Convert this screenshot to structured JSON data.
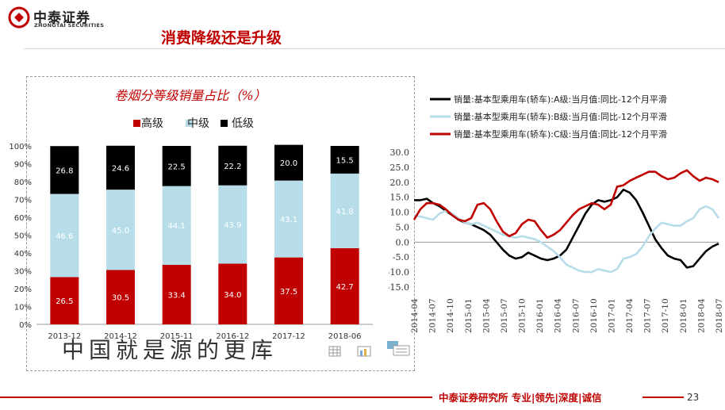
{
  "header": {
    "brand_cn": "中泰证券",
    "brand_en": "ZHONGTAI SECURITIES",
    "page_title": "消费降级还是升级",
    "brand_color": "#c00000"
  },
  "background_text": "中国就是源的更库",
  "footer": {
    "text": "中泰证券研究所 专业|领先|深度|诚信",
    "page_number": "23"
  },
  "chart_data": [
    {
      "type": "bar",
      "stacked": true,
      "title": "卷烟分等级销量占比（%）",
      "categories": [
        "2013-12",
        "2014-12",
        "2015-11",
        "2016-12",
        "2017-12",
        "2018-06"
      ],
      "series": [
        {
          "name": "高级",
          "color": "#c00000",
          "values": [
            26.5,
            30.5,
            33.4,
            34.0,
            37.5,
            42.7
          ]
        },
        {
          "name": "中级",
          "color": "#b7dde8",
          "values": [
            46.6,
            45.0,
            44.1,
            43.9,
            43.1,
            41.8
          ]
        },
        {
          "name": "低级",
          "color": "#000000",
          "values": [
            26.8,
            24.6,
            22.5,
            22.2,
            20.0,
            15.5
          ]
        }
      ],
      "y_ticks": [
        "0%",
        "10%",
        "20%",
        "30%",
        "40%",
        "50%",
        "60%",
        "70%",
        "80%",
        "90%",
        "100%"
      ],
      "ylim": [
        0,
        100
      ],
      "legend": "top"
    },
    {
      "type": "line",
      "title": "",
      "legend": "top",
      "x_ticks": [
        "2014-04",
        "2014-07",
        "2014-10",
        "2015-01",
        "2015-04",
        "2015-07",
        "2015-10",
        "2016-01",
        "2016-04",
        "2016-07",
        "2016-10",
        "2017-01",
        "2017-04",
        "2017-07",
        "2017-10",
        "2018-01",
        "2018-04",
        "2018-07"
      ],
      "ylim": [
        -15,
        30
      ],
      "y_ticks": [
        "30.0",
        "25.0",
        "20.0",
        "15.0",
        "10.0",
        "5.0",
        "0.0",
        "-5.0",
        "-10.0",
        "-15.0"
      ],
      "series": [
        {
          "name": "销量:基本型乘用车(轿车):A级:当月值:同比-12个月平滑",
          "color": "#000000",
          "values": [
            14,
            14,
            14.5,
            13,
            12,
            10.5,
            9,
            7.5,
            6.5,
            6,
            5,
            4,
            2.5,
            0,
            -2.5,
            -4.5,
            -5.5,
            -5,
            -3.5,
            -4.5,
            -5.5,
            -6,
            -5.5,
            -4.5,
            -2.5,
            1.5,
            5.5,
            9.5,
            12.5,
            14,
            13.5,
            14,
            15,
            17.5,
            16.5,
            14,
            10,
            5.5,
            1,
            -2,
            -4.5,
            -5.5,
            -6,
            -8.5,
            -8,
            -5.5,
            -3,
            -1.5,
            -0.5
          ]
        },
        {
          "name": "销量:基本型乘用车(轿车):B级:当月值:同比-12个月平滑",
          "color": "#b7dde8",
          "values": [
            9,
            8.5,
            8,
            7.5,
            9.5,
            10.5,
            9.5,
            8,
            6.5,
            6,
            6.5,
            5.5,
            4.5,
            3.5,
            2.5,
            2,
            1.5,
            2,
            1.5,
            1,
            0,
            -1.5,
            -3,
            -5,
            -7.5,
            -8.5,
            -9.5,
            -10,
            -10,
            -9,
            -9.5,
            -10,
            -9,
            -5.5,
            -5,
            -4,
            -1.5,
            2,
            4.5,
            6.5,
            6,
            5.5,
            5.5,
            7,
            8,
            11,
            12,
            11,
            8
          ]
        },
        {
          "name": "销量:基本型乘用车(轿车):C级:当月值:同比-12个月平滑",
          "color": "#c00000",
          "values": [
            7.5,
            11,
            13,
            13,
            12.5,
            11,
            9,
            7.5,
            7,
            8,
            12.5,
            13,
            11,
            7,
            3.5,
            2,
            3,
            6,
            7.5,
            7,
            4,
            1.5,
            2.5,
            4,
            6.5,
            9,
            11,
            12,
            13,
            12.5,
            11,
            12.5,
            18.5,
            19,
            20.5,
            21.5,
            22.5,
            23.5,
            23.5,
            22,
            21,
            21.5,
            23,
            24,
            22,
            20.5,
            21.5,
            21,
            20
          ]
        }
      ]
    }
  ]
}
